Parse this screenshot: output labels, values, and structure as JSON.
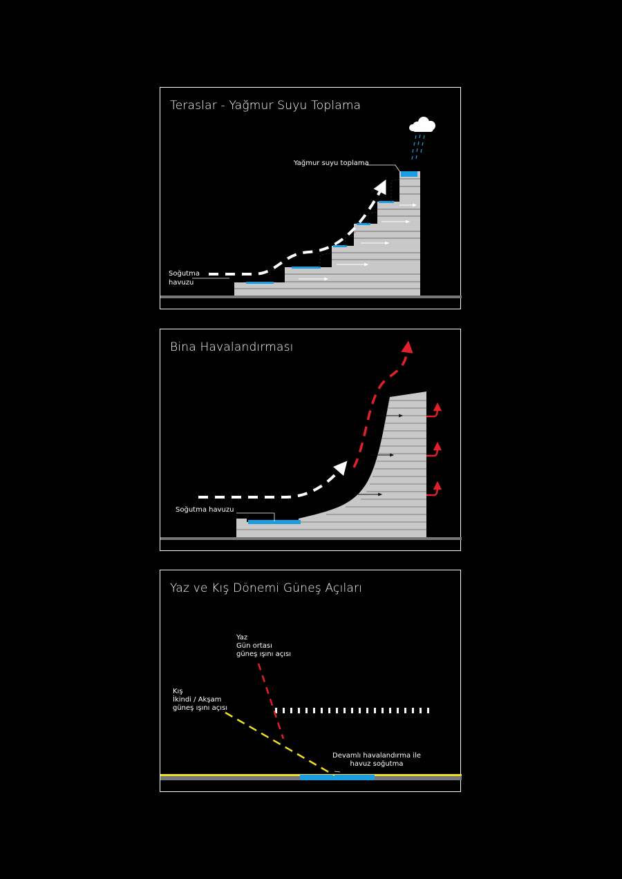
{
  "panels": [
    {
      "title": "Teraslar - Yağmur Suyu Toplama",
      "labels": {
        "rain_collection": "Yağmur suyu toplama",
        "pool_line1": "Soğutma",
        "pool_line2": "havuzu"
      }
    },
    {
      "title": "Bina Havalandırması",
      "labels": {
        "pool": "Soğutma havuzu"
      }
    },
    {
      "title": "Yaz ve Kış Dönemi Güneş Açıları",
      "labels": {
        "summer_line1": "Yaz",
        "summer_line2": "Gün ortası",
        "summer_line3": "güneş ışını açısı",
        "winter_line1": "Kış",
        "winter_line2": "İkindi / Akşam",
        "winter_line3": "güneş ışını açısı",
        "vent_line1": "Devamlı havalandırma ile",
        "vent_line2": "havuz soğutma"
      }
    }
  ],
  "colors": {
    "background": "#000000",
    "building": "#c8c8c8",
    "water": "#1a9ee0",
    "ground": "#777777",
    "summer_ray": "#e0202a",
    "winter_ray": "#f0e020",
    "airflow_hot": "#e0202a",
    "airflow_cool": "#ffffff"
  },
  "icons": [
    "cloud-icon",
    "rain-drops-icon",
    "arrow-icon"
  ]
}
